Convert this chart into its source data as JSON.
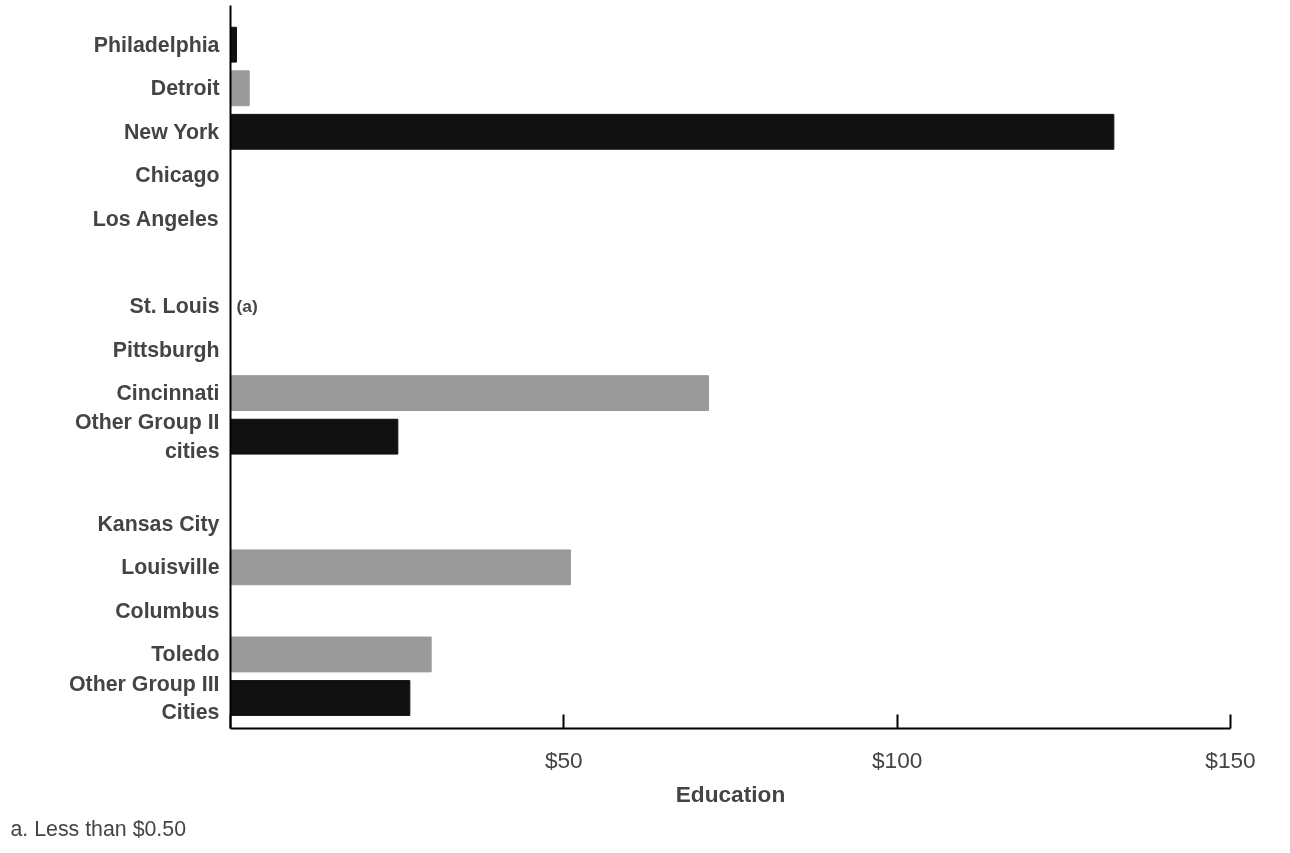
{
  "chart_data": {
    "type": "bar",
    "orientation": "horizontal",
    "xlabel": "Education",
    "categories": [
      "Philadelphia",
      "Detroit",
      "New York",
      "Chicago",
      "Los Angeles",
      null,
      "St. Louis",
      "Pittsburgh",
      "Cincinnati",
      "Other Group II\ncities",
      null,
      "Kansas City",
      "Louisville",
      "Columbus",
      "Toledo",
      "Other Group III\nCities"
    ],
    "values": [
      0.9,
      2.8,
      132.5,
      null,
      null,
      null,
      null,
      null,
      71.7,
      25.1,
      null,
      null,
      51.0,
      null,
      30.1,
      26.9
    ],
    "colors": [
      "#111111",
      "#9a9a9a",
      "#111111",
      null,
      null,
      null,
      null,
      null,
      "#9a9a9a",
      "#111111",
      null,
      null,
      "#9a9a9a",
      null,
      "#9a9a9a",
      "#111111"
    ],
    "xlim": [
      0,
      150
    ],
    "xticks": [
      {
        "value": 0,
        "label": null
      },
      {
        "value": 50,
        "label": "$50"
      },
      {
        "value": 100,
        "label": "$100"
      },
      {
        "value": 150,
        "label": "$150"
      }
    ],
    "value_labels": [
      null,
      null,
      null,
      null,
      null,
      null,
      "(a)",
      null,
      null,
      null,
      null,
      null,
      null,
      null,
      null,
      null
    ],
    "annotations": [
      "a. Less than $0.50"
    ],
    "grid": false
  }
}
